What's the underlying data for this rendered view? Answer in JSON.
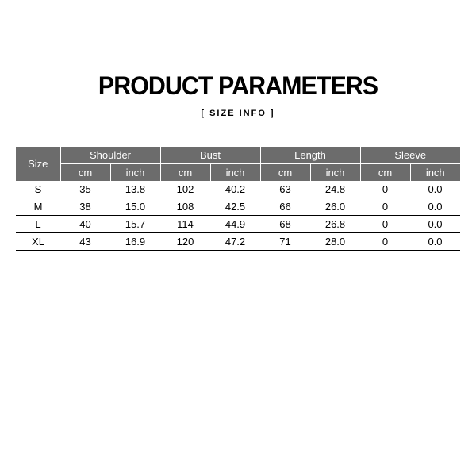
{
  "title": "PRODUCT PARAMETERS",
  "subtitle": "[ SIZE  INFO ]",
  "table": {
    "type": "table",
    "header_bg": "#6c6c6c",
    "header_fg": "#ffffff",
    "row_border_color": "#000000",
    "size_label": "Size",
    "groups": [
      "Shoulder",
      "Bust",
      "Length",
      "Sleeve"
    ],
    "units": [
      "cm",
      "inch",
      "cm",
      "inch",
      "cm",
      "inch",
      "cm",
      "inch"
    ],
    "rows": [
      {
        "size": "S",
        "cells": [
          "35",
          "13.8",
          "102",
          "40.2",
          "63",
          "24.8",
          "0",
          "0.0"
        ]
      },
      {
        "size": "M",
        "cells": [
          "38",
          "15.0",
          "108",
          "42.5",
          "66",
          "26.0",
          "0",
          "0.0"
        ]
      },
      {
        "size": "L",
        "cells": [
          "40",
          "15.7",
          "114",
          "44.9",
          "68",
          "26.8",
          "0",
          "0.0"
        ]
      },
      {
        "size": "XL",
        "cells": [
          "43",
          "16.9",
          "120",
          "47.2",
          "71",
          "28.0",
          "0",
          "0.0"
        ]
      }
    ]
  }
}
